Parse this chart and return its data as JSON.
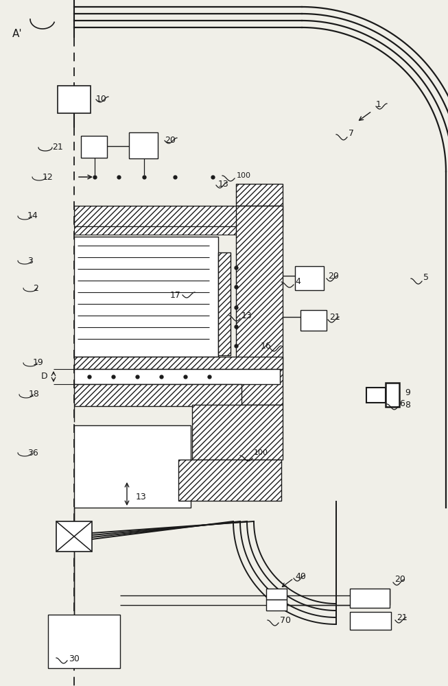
{
  "bg_color": "#f0efe8",
  "lc": "#1a1a1a",
  "figsize": [
    6.53,
    10.0
  ],
  "dpi": 100
}
